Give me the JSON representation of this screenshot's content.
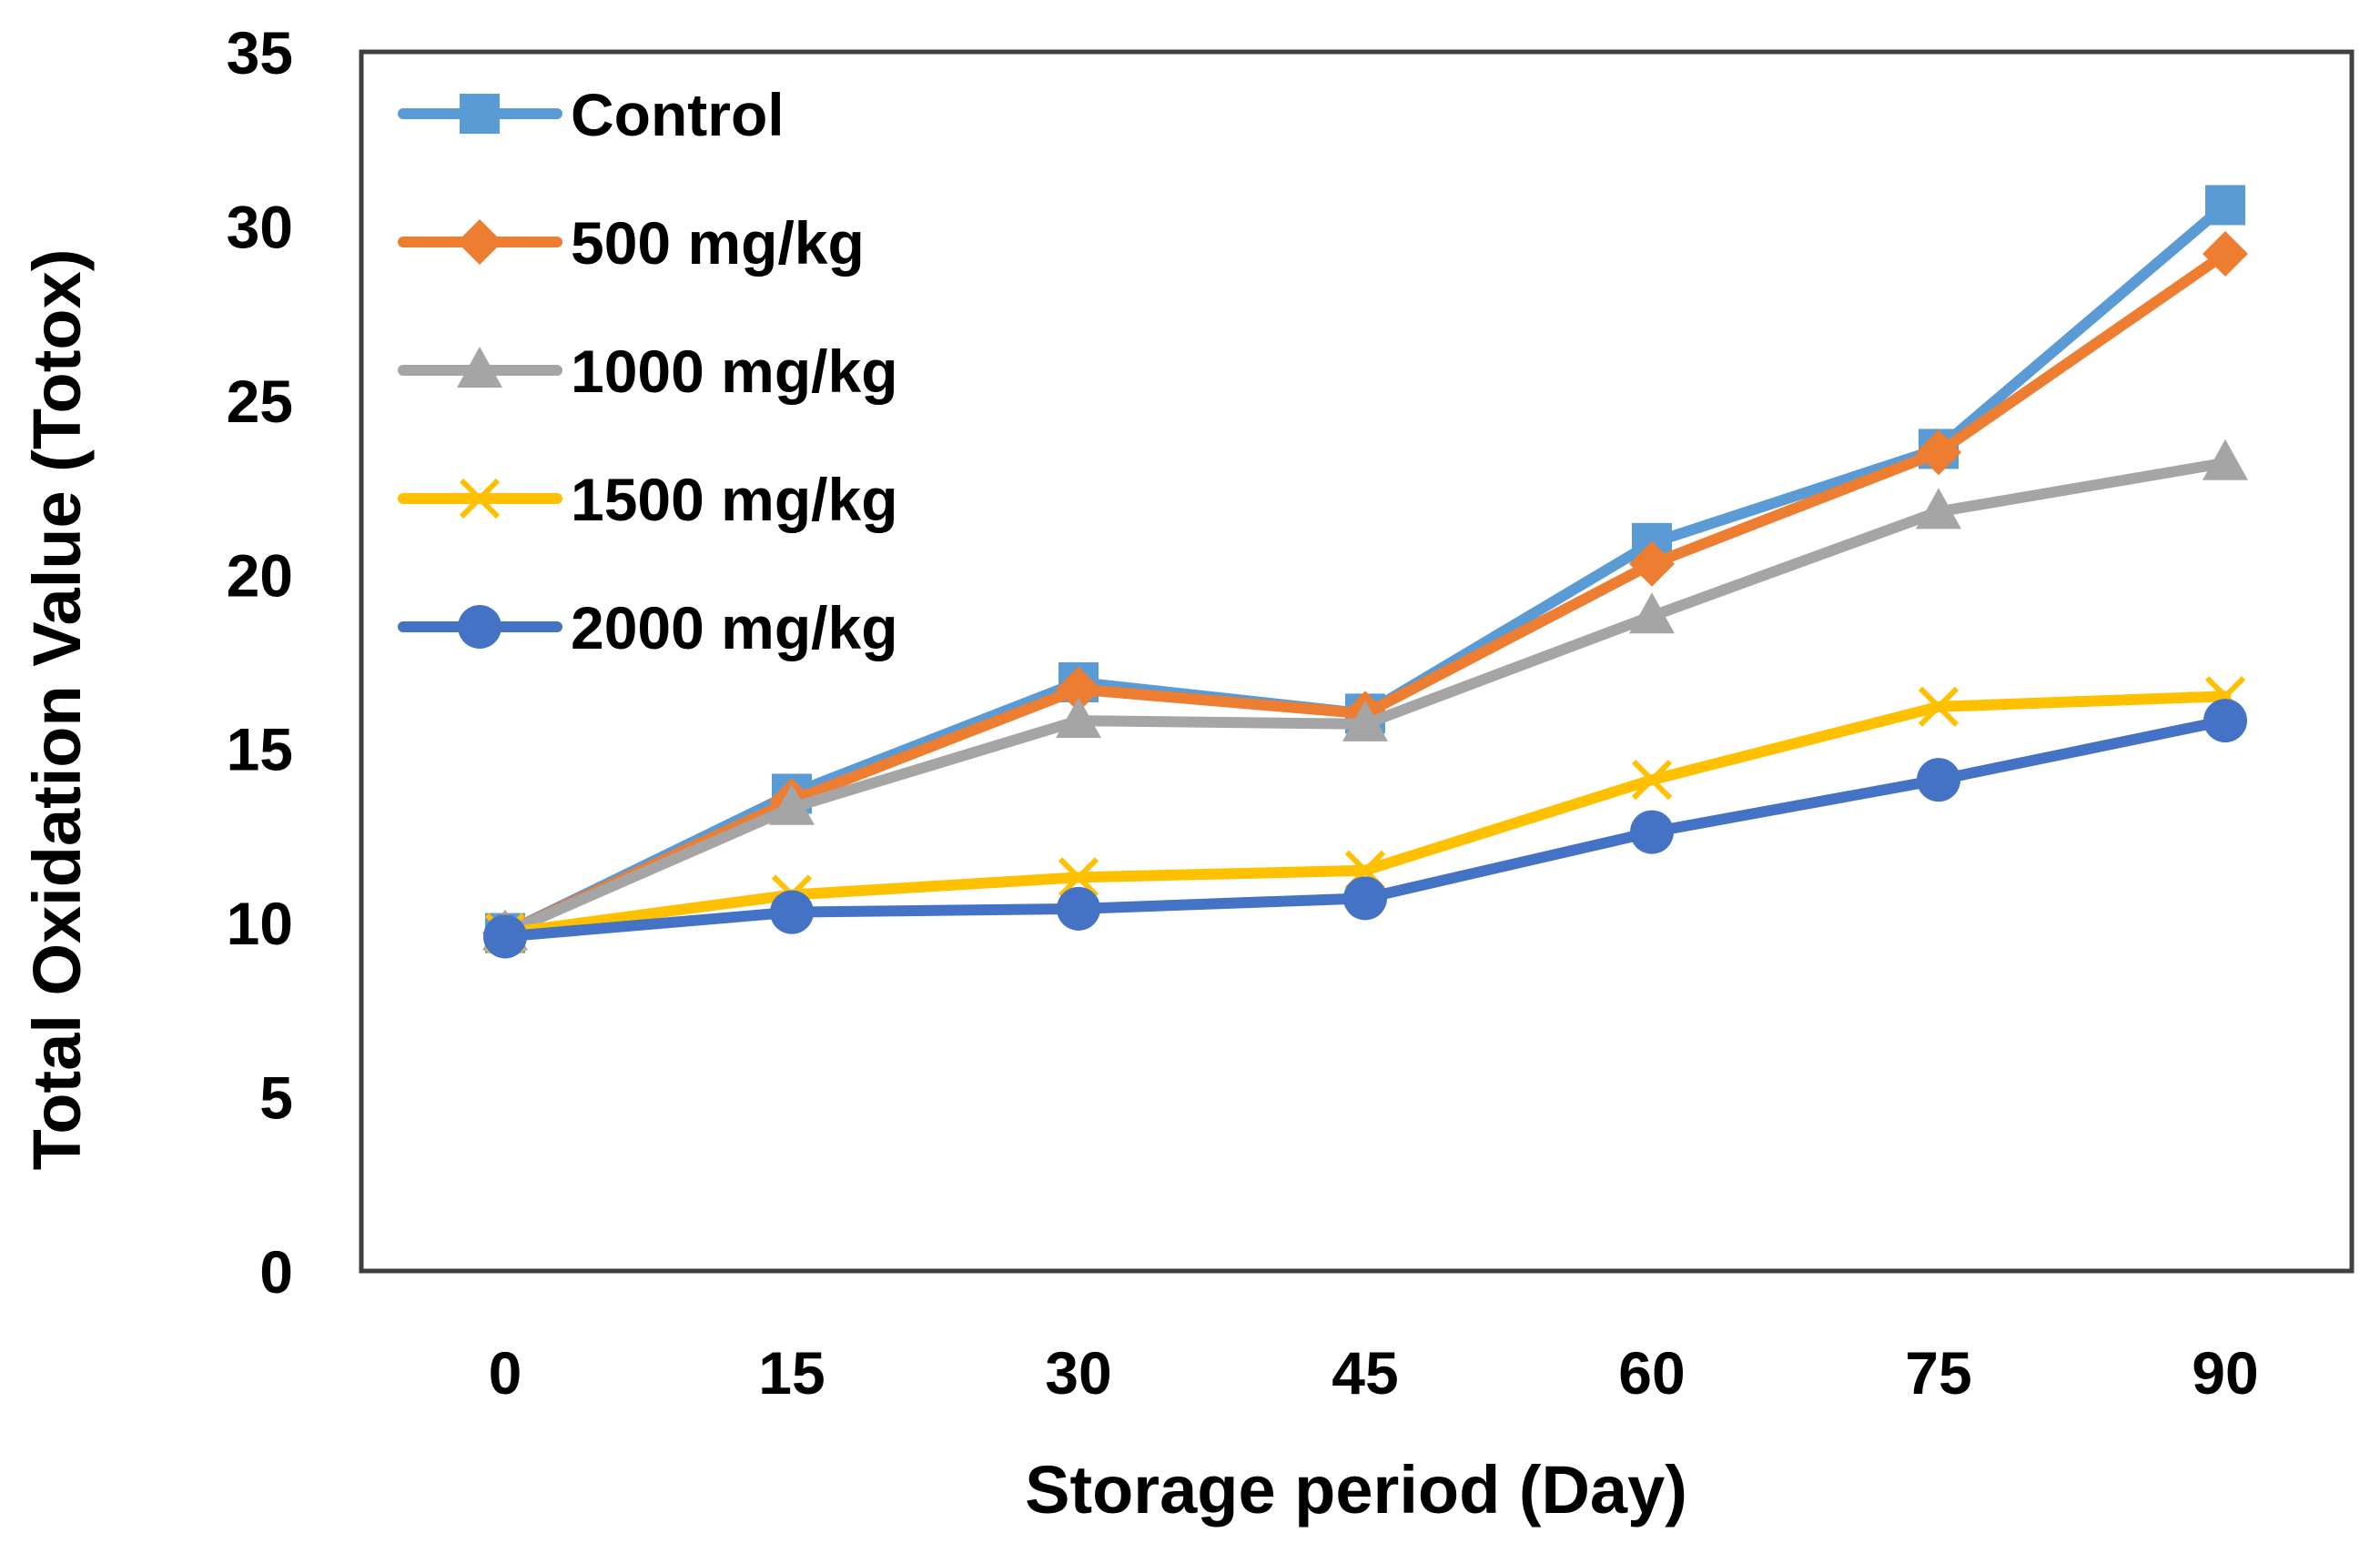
{
  "chart_data": {
    "type": "line",
    "title": "",
    "xlabel": "Storage period (Day)",
    "ylabel": "Total Oxidation Value (Totox)",
    "categories": [
      "0",
      "15",
      "30",
      "45",
      "60",
      "75",
      "90"
    ],
    "ylim": [
      0,
      35
    ],
    "yticks": [
      0,
      5,
      10,
      15,
      20,
      25,
      30,
      35
    ],
    "grid": false,
    "legend": "top-left, inside plot",
    "series": [
      {
        "name": "Control",
        "color": "#5B9BD5",
        "marker": "square",
        "values": [
          9.7,
          13.7,
          16.9,
          16.0,
          20.9,
          23.6,
          30.6
        ]
      },
      {
        "name": "500 mg/kg",
        "color": "#ED7D31",
        "marker": "diamond",
        "values": [
          9.7,
          13.5,
          16.7,
          16.0,
          20.3,
          23.5,
          29.2
        ]
      },
      {
        "name": "1000 mg/kg",
        "color": "#A5A5A5",
        "marker": "triangle",
        "values": [
          9.7,
          13.3,
          15.8,
          15.7,
          18.8,
          21.8,
          23.2
        ]
      },
      {
        "name": "1500 mg/kg",
        "color": "#FFC000",
        "marker": "x",
        "values": [
          9.7,
          10.8,
          11.3,
          11.5,
          14.1,
          16.2,
          16.5
        ]
      },
      {
        "name": "2000 mg/kg",
        "color": "#4472C4",
        "marker": "circle",
        "values": [
          9.6,
          10.3,
          10.4,
          10.7,
          12.6,
          14.1,
          15.8
        ]
      }
    ]
  }
}
